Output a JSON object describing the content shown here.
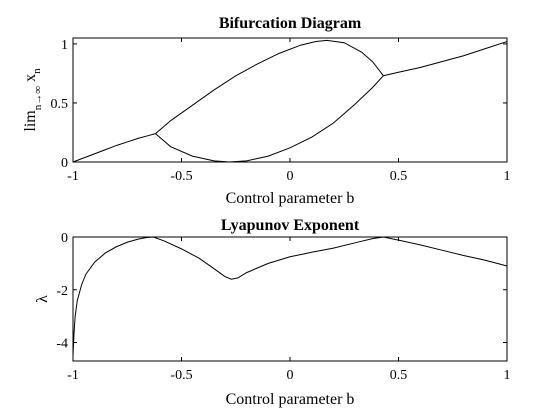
{
  "chart_data": [
    {
      "type": "line",
      "title": "Bifurcation Diagram",
      "xlabel": "Control parameter b",
      "ylabel": "lim n→∞ x n",
      "ylabel_parts": {
        "lim": "lim",
        "sub": "n→∞",
        "x": "x",
        "xsub": "n"
      },
      "xlim": [
        -1,
        1
      ],
      "ylim": [
        0,
        1.05
      ],
      "xticks": [
        "-1",
        "-0.5",
        "0",
        "0.5",
        "1"
      ],
      "yticks": [
        "0",
        "0.5",
        "1"
      ],
      "series": [
        {
          "x": [
            -1.0,
            -0.95,
            -0.9,
            -0.85,
            -0.8,
            -0.75,
            -0.7,
            -0.65,
            -0.62
          ],
          "y": [
            0.0,
            0.035,
            0.07,
            0.105,
            0.14,
            0.17,
            0.2,
            0.225,
            0.24
          ]
        },
        {
          "x": [
            -0.62,
            -0.55,
            -0.45,
            -0.35,
            -0.25,
            -0.15,
            -0.05,
            0.05,
            0.12,
            0.17,
            0.25,
            0.33,
            0.38,
            0.41,
            0.43
          ],
          "y": [
            0.24,
            0.35,
            0.48,
            0.61,
            0.73,
            0.83,
            0.92,
            0.99,
            1.02,
            1.03,
            1.01,
            0.93,
            0.85,
            0.78,
            0.73
          ]
        },
        {
          "x": [
            -0.62,
            -0.55,
            -0.45,
            -0.35,
            -0.28,
            -0.2,
            -0.1,
            0.0,
            0.1,
            0.2,
            0.3,
            0.38,
            0.43
          ],
          "y": [
            0.24,
            0.13,
            0.05,
            0.01,
            0.0,
            0.01,
            0.05,
            0.12,
            0.21,
            0.33,
            0.49,
            0.63,
            0.73
          ]
        },
        {
          "x": [
            0.43,
            0.5,
            0.6,
            0.7,
            0.8,
            0.9,
            1.0
          ],
          "y": [
            0.73,
            0.76,
            0.8,
            0.85,
            0.9,
            0.96,
            1.02
          ]
        }
      ],
      "grid": false
    },
    {
      "type": "line",
      "title": "Lyapunov Exponent",
      "xlabel": "Control parameter b",
      "ylabel": "λ",
      "xlim": [
        -1,
        1
      ],
      "ylim": [
        -4.7,
        0
      ],
      "xticks": [
        "-1",
        "-0.5",
        "0",
        "0.5",
        "1"
      ],
      "yticks": [
        "0",
        "-2",
        "-4"
      ],
      "series": [
        {
          "x": [
            -1.0,
            -0.995,
            -0.99,
            -0.98,
            -0.96,
            -0.94,
            -0.9,
            -0.85,
            -0.8,
            -0.75,
            -0.7,
            -0.66,
            -0.63,
            -0.58,
            -0.5,
            -0.42,
            -0.35,
            -0.3,
            -0.27,
            -0.24,
            -0.2,
            -0.1,
            0.0,
            0.1,
            0.2,
            0.3,
            0.38,
            0.43,
            0.5,
            0.6,
            0.7,
            0.8,
            0.9,
            1.0
          ],
          "y": [
            -4.5,
            -3.6,
            -3.0,
            -2.4,
            -1.8,
            -1.4,
            -0.95,
            -0.6,
            -0.37,
            -0.2,
            -0.08,
            -0.02,
            0.0,
            -0.15,
            -0.45,
            -0.8,
            -1.2,
            -1.5,
            -1.6,
            -1.55,
            -1.35,
            -1.0,
            -0.75,
            -0.58,
            -0.42,
            -0.22,
            -0.06,
            0.0,
            -0.12,
            -0.3,
            -0.5,
            -0.7,
            -0.88,
            -1.1
          ]
        },
        {
          "x": [
            -1.0,
            1.0
          ],
          "y": [
            0.0,
            0.0
          ],
          "color": "#cc0000"
        }
      ],
      "grid": false
    }
  ]
}
